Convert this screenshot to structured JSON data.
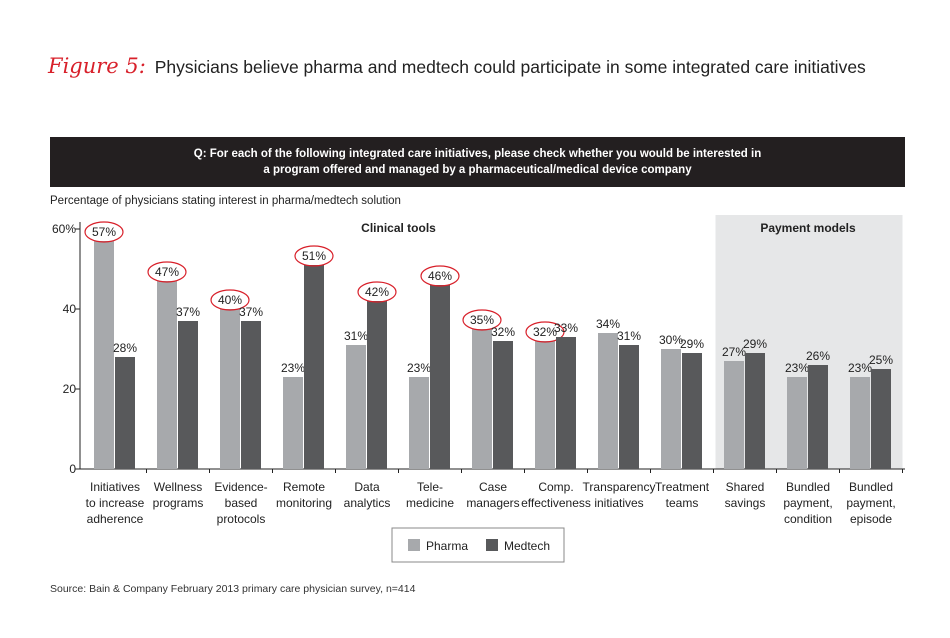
{
  "figure": {
    "label": "Figure 5:",
    "title": "Physicians believe pharma and medtech could participate in some integrated care initiatives"
  },
  "question": {
    "line1": "Q: For each of the following integrated care initiatives, please check whether you would be interested in",
    "line2": "a program offered and managed by a pharmaceutical/medical device company"
  },
  "subtitle": "Percentage of physicians stating interest in pharma/medtech solution",
  "source": "Source: Bain & Company February 2013 primary care physician survey, n=414",
  "colors": {
    "pharma": "#a7a9ac",
    "medtech": "#58595b",
    "highlight": "#d8202a",
    "panel": "#e6e7e8"
  },
  "chart_data": {
    "type": "bar",
    "ylim": [
      0,
      60
    ],
    "yticks": [
      0,
      20,
      40,
      60
    ],
    "ytick_labels": [
      "0",
      "20",
      "40",
      "60%"
    ],
    "groups": [
      {
        "name": "Clinical tools",
        "start": 0,
        "end": 9,
        "shaded": false
      },
      {
        "name": "Payment models",
        "start": 10,
        "end": 12,
        "shaded": true
      }
    ],
    "categories": [
      [
        "Initiatives",
        "to increase",
        "adherence"
      ],
      [
        "Wellness",
        "programs"
      ],
      [
        "Evidence-",
        "based",
        "protocols"
      ],
      [
        "Remote",
        "monitoring"
      ],
      [
        "Data",
        "analytics"
      ],
      [
        "Tele-",
        "medicine"
      ],
      [
        "Case",
        "managers"
      ],
      [
        "Comp.",
        "effectiveness"
      ],
      [
        "Transparency",
        "initiatives"
      ],
      [
        "Treatment",
        "teams"
      ],
      [
        "Shared",
        "savings"
      ],
      [
        "Bundled",
        "payment,",
        "condition"
      ],
      [
        "Bundled",
        "payment,",
        "episode"
      ]
    ],
    "series": [
      {
        "name": "Pharma",
        "color": "#a7a9ac",
        "values": [
          57,
          47,
          40,
          23,
          31,
          23,
          35,
          32,
          34,
          30,
          27,
          23,
          23
        ],
        "labels": [
          "57%",
          "47%",
          "40%",
          "23%",
          "31%",
          "23%",
          "35%",
          "32%",
          "34%",
          "30%",
          "27%",
          "23%",
          "23%"
        ]
      },
      {
        "name": "Medtech",
        "color": "#58595b",
        "values": [
          28,
          37,
          37,
          51,
          42,
          46,
          32,
          33,
          31,
          29,
          29,
          26,
          25
        ],
        "labels": [
          "28%",
          "37%",
          "37%",
          "51%",
          "42%",
          "46%",
          "32%",
          "33%",
          "31%",
          "29%",
          "29%",
          "26%",
          "25%"
        ]
      }
    ],
    "circled": [
      {
        "category": 0,
        "series": 0
      },
      {
        "category": 1,
        "series": 0
      },
      {
        "category": 2,
        "series": 0
      },
      {
        "category": 3,
        "series": 1
      },
      {
        "category": 4,
        "series": 1
      },
      {
        "category": 5,
        "series": 1
      },
      {
        "category": 6,
        "series": 0
      },
      {
        "category": 7,
        "series": 0
      }
    ],
    "legend": [
      "Pharma",
      "Medtech"
    ]
  }
}
